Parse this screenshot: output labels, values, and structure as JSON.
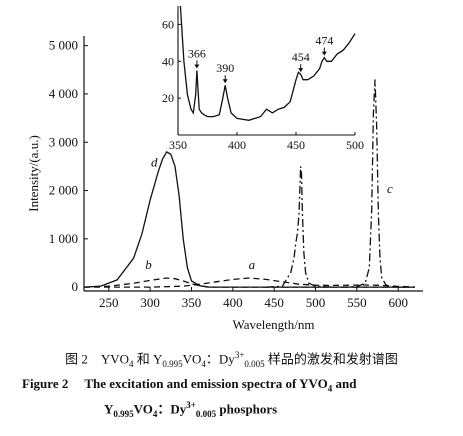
{
  "chart_data": [
    {
      "type": "line",
      "panel": "main",
      "xlabel": "Wavelength/nm",
      "ylabel": "Intensity/(a.u.)",
      "xlim": [
        220,
        630
      ],
      "ylim": [
        -80,
        5200
      ],
      "x_ticks": [
        250,
        300,
        350,
        400,
        450,
        500,
        550,
        600
      ],
      "y_ticks": [
        0,
        1000,
        2000,
        3000,
        4000,
        5000
      ],
      "y_tick_labels": [
        "0",
        "1 000",
        "2 000",
        "3 000",
        "4 000",
        "5 000"
      ],
      "grid": false,
      "series": [
        {
          "name": "a",
          "style": "dashed",
          "x": [
            220,
            260,
            300,
            340,
            360,
            380,
            400,
            420,
            440,
            460,
            480,
            500,
            520,
            540,
            560,
            580,
            600,
            620
          ],
          "y": [
            0,
            0,
            0,
            20,
            60,
            110,
            160,
            190,
            160,
            110,
            60,
            40,
            35,
            40,
            45,
            35,
            15,
            5
          ]
        },
        {
          "name": "b",
          "style": "dashed",
          "x": [
            220,
            250,
            280,
            300,
            320,
            330,
            340,
            350,
            360,
            370,
            380,
            400,
            440,
            500,
            560,
            620
          ],
          "y": [
            0,
            20,
            80,
            140,
            190,
            175,
            130,
            70,
            25,
            5,
            0,
            0,
            0,
            0,
            0,
            0
          ]
        },
        {
          "name": "c",
          "style": "dash-dot",
          "x": [
            530,
            550,
            560,
            565,
            568,
            570,
            572,
            574,
            576,
            578,
            580,
            585,
            590,
            600,
            620
          ],
          "y": [
            0,
            10,
            80,
            400,
            1600,
            3600,
            4300,
            3300,
            1500,
            600,
            200,
            50,
            10,
            0,
            0
          ]
        },
        {
          "name": "d",
          "style": "solid",
          "x": [
            220,
            240,
            260,
            280,
            290,
            300,
            310,
            315,
            320,
            325,
            330,
            335,
            340,
            345,
            350,
            360,
            370,
            400,
            440,
            500,
            560,
            620
          ],
          "y": [
            0,
            20,
            150,
            600,
            1100,
            1800,
            2400,
            2650,
            2800,
            2750,
            2500,
            1900,
            1000,
            400,
            130,
            30,
            0,
            0,
            0,
            0,
            0,
            0
          ]
        },
        {
          "name": "",
          "style": "dash-dot",
          "x": [
            440,
            460,
            470,
            474,
            476,
            478,
            480,
            481,
            482,
            483,
            484,
            486,
            488,
            492,
            500,
            520
          ],
          "y": [
            0,
            20,
            300,
            600,
            900,
            1100,
            1500,
            2000,
            2500,
            2350,
            1600,
            700,
            300,
            80,
            20,
            0
          ]
        }
      ],
      "curve_labels": [
        "a",
        "b",
        "c",
        "d"
      ]
    },
    {
      "type": "line",
      "panel": "inset",
      "xlim": [
        350,
        500
      ],
      "ylim": [
        0,
        70
      ],
      "x_ticks": [
        350,
        400,
        450,
        500
      ],
      "y_ticks": [
        20,
        40,
        60
      ],
      "series": [
        {
          "name": "",
          "x": [
            352,
            355,
            358,
            361,
            363,
            365,
            366,
            367,
            368,
            370,
            372,
            375,
            380,
            385,
            388,
            390,
            392,
            395,
            400,
            410,
            420,
            425,
            430,
            435,
            440,
            445,
            448,
            450,
            452,
            454,
            456,
            460,
            465,
            470,
            472,
            474,
            476,
            480,
            485,
            490,
            495,
            500
          ],
          "y": [
            70,
            40,
            22,
            14,
            12,
            22,
            35,
            24,
            14,
            12,
            11,
            10,
            10,
            11,
            20,
            27,
            20,
            12,
            9,
            8,
            10,
            14,
            12,
            14,
            15,
            18,
            25,
            30,
            34,
            33,
            30,
            30,
            32,
            36,
            40,
            42,
            40,
            40,
            44,
            46,
            50,
            55
          ]
        }
      ],
      "peak_labels": [
        {
          "text": "366",
          "x": 366
        },
        {
          "text": "390",
          "x": 390
        },
        {
          "text": "454",
          "x": 454
        },
        {
          "text": "474",
          "x": 474
        }
      ]
    }
  ],
  "caption": {
    "cn_prefix": "图 2　YVO",
    "cn_sub1": "4",
    "cn_mid1": " 和 Y",
    "cn_sub2": "0.995",
    "cn_mid2": "VO",
    "cn_sub3": "4",
    "cn_mid3": "：Dy",
    "cn_sup": "3+",
    "cn_sub4": "0.005",
    "cn_suffix": " 样品的激发和发射谱图",
    "en_line1_prefix": "Figure 2　 The excitation and emission spectra of YVO",
    "en_line1_sub": "4",
    "en_line1_suffix": " and",
    "en_line2_prefix": "Y",
    "en_line2_sub1": "0.995",
    "en_line2_mid": "VO",
    "en_line2_sub2": "4",
    "en_line2_mid2": "：Dy",
    "en_line2_sup": "3+",
    "en_line2_sub3": "0.005",
    "en_line2_suffix": " phosphors"
  }
}
